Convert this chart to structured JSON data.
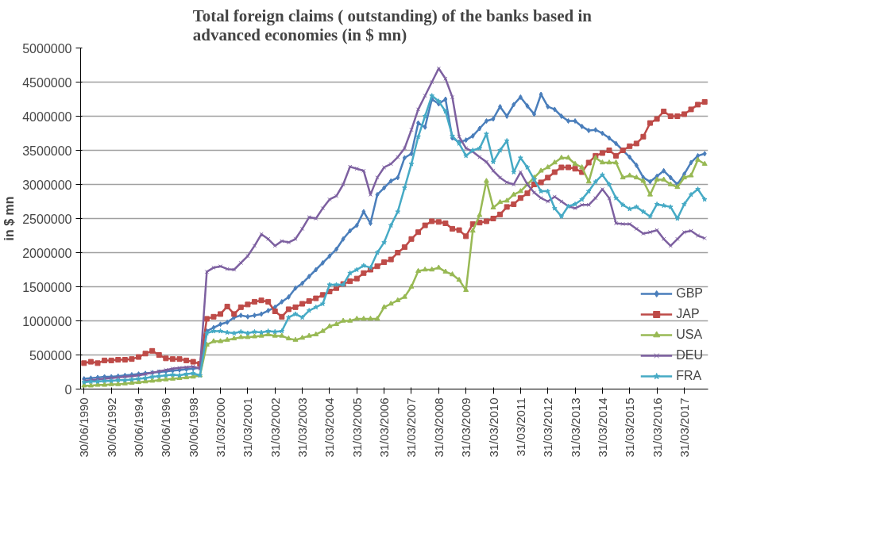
{
  "chart_data": {
    "type": "line",
    "title": "Total foreign claims ( outstanding) of  the banks based in advanced economies (in $ mn)",
    "ylabel": "in $ mn",
    "categories": [
      "30/06/1990",
      null,
      null,
      null,
      "30/06/1992",
      null,
      null,
      null,
      "30/06/1994",
      null,
      null,
      null,
      "30/06/1996",
      null,
      null,
      null,
      "30/06/1998",
      null,
      null,
      null,
      "31/03/2000",
      null,
      null,
      null,
      "31/03/2001",
      null,
      null,
      null,
      "31/03/2002",
      null,
      null,
      null,
      "31/03/2003",
      null,
      null,
      null,
      "31/03/2004",
      null,
      null,
      null,
      "31/03/2005",
      null,
      null,
      null,
      "31/03/2006",
      null,
      null,
      null,
      "31/03/2007",
      null,
      null,
      null,
      "31/03/2008",
      null,
      null,
      null,
      "31/03/2009",
      null,
      null,
      null,
      "31/03/2010",
      null,
      null,
      null,
      "31/03/2011",
      null,
      null,
      null,
      "31/03/2012",
      null,
      null,
      null,
      "31/03/2013",
      null,
      null,
      null,
      "31/03/2014",
      null,
      null,
      null,
      "31/03/2015",
      null,
      null,
      null,
      "31/03/2016",
      null,
      null,
      null,
      "31/03/2017",
      null,
      null,
      null
    ],
    "ylim": [
      0,
      5000000
    ],
    "yticks": [
      0,
      500000,
      1000000,
      1500000,
      2000000,
      2500000,
      3000000,
      3500000,
      4000000,
      4500000,
      5000000
    ],
    "grid": "y",
    "legend": "bottom right",
    "series": [
      {
        "name": "GBP",
        "color": "#4a7ebb",
        "marker": "diamond",
        "values": [
          150000,
          160000,
          170000,
          180000,
          180000,
          190000,
          200000,
          210000,
          220000,
          230000,
          240000,
          250000,
          260000,
          270000,
          280000,
          290000,
          300000,
          310000,
          850000,
          900000,
          950000,
          980000,
          1050000,
          1080000,
          1060000,
          1080000,
          1100000,
          1150000,
          1200000,
          1280000,
          1350000,
          1480000,
          1550000,
          1650000,
          1750000,
          1850000,
          1950000,
          2050000,
          2200000,
          2320000,
          2400000,
          2600000,
          2430000,
          2850000,
          2950000,
          3050000,
          3100000,
          3390000,
          3450000,
          3900000,
          3840000,
          4250000,
          4180000,
          4250000,
          3680000,
          3620000,
          3650000,
          3710000,
          3820000,
          3930000,
          3960000,
          4140000,
          4000000,
          4170000,
          4280000,
          4150000,
          4030000,
          4320000,
          4140000,
          4100000,
          4000000,
          3930000,
          3930000,
          3850000,
          3790000,
          3800000,
          3750000,
          3680000,
          3600000,
          3500000,
          3400000,
          3280000,
          3100000,
          3040000,
          3120000,
          3200000,
          3100000,
          3000000,
          3150000,
          3320000,
          3420000,
          3450000
        ]
      },
      {
        "name": "JAP",
        "color": "#be4b48",
        "marker": "square",
        "values": [
          380000,
          400000,
          380000,
          420000,
          420000,
          430000,
          430000,
          440000,
          470000,
          520000,
          560000,
          500000,
          450000,
          440000,
          440000,
          420000,
          400000,
          370000,
          1030000,
          1060000,
          1100000,
          1210000,
          1100000,
          1200000,
          1240000,
          1280000,
          1300000,
          1280000,
          1140000,
          1060000,
          1170000,
          1200000,
          1250000,
          1290000,
          1330000,
          1380000,
          1430000,
          1480000,
          1540000,
          1580000,
          1620000,
          1700000,
          1750000,
          1800000,
          1860000,
          1900000,
          2000000,
          2080000,
          2200000,
          2300000,
          2400000,
          2460000,
          2450000,
          2430000,
          2350000,
          2330000,
          2240000,
          2420000,
          2440000,
          2460000,
          2500000,
          2560000,
          2670000,
          2710000,
          2800000,
          2870000,
          3000000,
          3030000,
          3100000,
          3180000,
          3250000,
          3250000,
          3230000,
          3180000,
          3320000,
          3420000,
          3460000,
          3500000,
          3420000,
          3500000,
          3560000,
          3600000,
          3700000,
          3900000,
          3960000,
          4070000,
          4000000,
          4000000,
          4030000,
          4100000,
          4170000,
          4210000
        ]
      },
      {
        "name": "USA",
        "color": "#98b954",
        "marker": "triangle",
        "values": [
          50000,
          50000,
          60000,
          60000,
          70000,
          70000,
          80000,
          90000,
          100000,
          110000,
          120000,
          130000,
          140000,
          150000,
          160000,
          170000,
          180000,
          200000,
          650000,
          700000,
          700000,
          720000,
          740000,
          760000,
          760000,
          770000,
          780000,
          800000,
          780000,
          780000,
          740000,
          720000,
          750000,
          780000,
          800000,
          850000,
          920000,
          950000,
          1000000,
          1000000,
          1030000,
          1030000,
          1030000,
          1030000,
          1200000,
          1250000,
          1300000,
          1350000,
          1500000,
          1730000,
          1750000,
          1750000,
          1780000,
          1720000,
          1680000,
          1600000,
          1450000,
          2320000,
          2550000,
          3050000,
          2660000,
          2740000,
          2760000,
          2850000,
          2900000,
          3000000,
          3100000,
          3200000,
          3250000,
          3320000,
          3390000,
          3390000,
          3300000,
          3250000,
          3040000,
          3390000,
          3320000,
          3320000,
          3320000,
          3100000,
          3130000,
          3100000,
          3050000,
          2850000,
          3070000,
          3070000,
          3000000,
          2960000,
          3100000,
          3130000,
          3360000,
          3300000
        ]
      },
      {
        "name": "DEU",
        "color": "#7d60a0",
        "marker": "cross",
        "values": [
          120000,
          130000,
          140000,
          150000,
          160000,
          170000,
          180000,
          190000,
          200000,
          220000,
          240000,
          260000,
          280000,
          300000,
          310000,
          320000,
          330000,
          300000,
          1720000,
          1780000,
          1800000,
          1760000,
          1750000,
          1850000,
          1950000,
          2100000,
          2270000,
          2200000,
          2100000,
          2170000,
          2150000,
          2200000,
          2350000,
          2520000,
          2500000,
          2650000,
          2780000,
          2830000,
          3000000,
          3260000,
          3230000,
          3200000,
          2850000,
          3100000,
          3250000,
          3300000,
          3400000,
          3530000,
          3800000,
          4100000,
          4300000,
          4500000,
          4700000,
          4550000,
          4280000,
          3700000,
          3530000,
          3480000,
          3400000,
          3330000,
          3200000,
          3100000,
          3030000,
          3000000,
          3180000,
          3000000,
          2880000,
          2800000,
          2750000,
          2820000,
          2750000,
          2680000,
          2650000,
          2700000,
          2700000,
          2800000,
          2930000,
          2800000,
          2430000,
          2420000,
          2420000,
          2350000,
          2280000,
          2300000,
          2330000,
          2200000,
          2100000,
          2200000,
          2300000,
          2320000,
          2250000,
          2210000
        ]
      },
      {
        "name": "FRA",
        "color": "#46aac5",
        "marker": "star",
        "values": [
          100000,
          110000,
          110000,
          120000,
          120000,
          130000,
          130000,
          140000,
          150000,
          160000,
          180000,
          190000,
          200000,
          210000,
          200000,
          220000,
          230000,
          200000,
          820000,
          850000,
          850000,
          830000,
          820000,
          840000,
          820000,
          840000,
          830000,
          850000,
          840000,
          850000,
          1050000,
          1100000,
          1050000,
          1150000,
          1200000,
          1250000,
          1530000,
          1530000,
          1530000,
          1700000,
          1750000,
          1810000,
          1780000,
          2000000,
          2150000,
          2400000,
          2600000,
          2950000,
          3300000,
          3700000,
          4000000,
          4300000,
          4220000,
          4070000,
          3710000,
          3600000,
          3420000,
          3500000,
          3530000,
          3740000,
          3330000,
          3500000,
          3640000,
          3180000,
          3390000,
          3250000,
          3070000,
          2900000,
          2900000,
          2650000,
          2530000,
          2680000,
          2710000,
          2780000,
          2900000,
          3040000,
          3140000,
          3000000,
          2800000,
          2700000,
          2640000,
          2670000,
          2600000,
          2530000,
          2710000,
          2690000,
          2670000,
          2500000,
          2710000,
          2850000,
          2930000,
          2780000
        ]
      }
    ]
  }
}
